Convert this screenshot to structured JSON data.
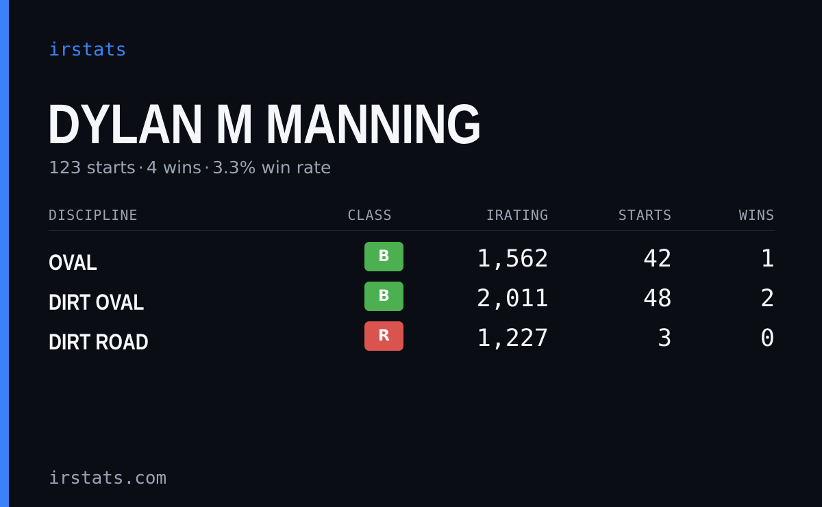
{
  "brand": "irstats",
  "driver": {
    "name": "DYLAN M MANNING",
    "starts_text": "123 starts",
    "wins_text": "4 wins",
    "win_rate_text": "3.3% win rate",
    "separator": "·"
  },
  "table": {
    "headers": {
      "discipline": "DISCIPLINE",
      "class": "CLASS",
      "irating": "IRATING",
      "starts": "STARTS",
      "wins": "WINS"
    },
    "rows": [
      {
        "discipline": "OVAL",
        "class": "B",
        "class_color": "#4caf50",
        "irating": "1,562",
        "starts": "42",
        "wins": "1"
      },
      {
        "discipline": "DIRT OVAL",
        "class": "B",
        "class_color": "#4caf50",
        "irating": "2,011",
        "starts": "48",
        "wins": "2"
      },
      {
        "discipline": "DIRT ROAD",
        "class": "R",
        "class_color": "#d9534f",
        "irating": "1,227",
        "starts": "3",
        "wins": "0"
      }
    ]
  },
  "footer": "irstats.com",
  "colors": {
    "background": "#0a0d14",
    "accent": "#3b82f6",
    "text_primary": "#f5f7fb",
    "text_muted": "#9aa3b2"
  }
}
